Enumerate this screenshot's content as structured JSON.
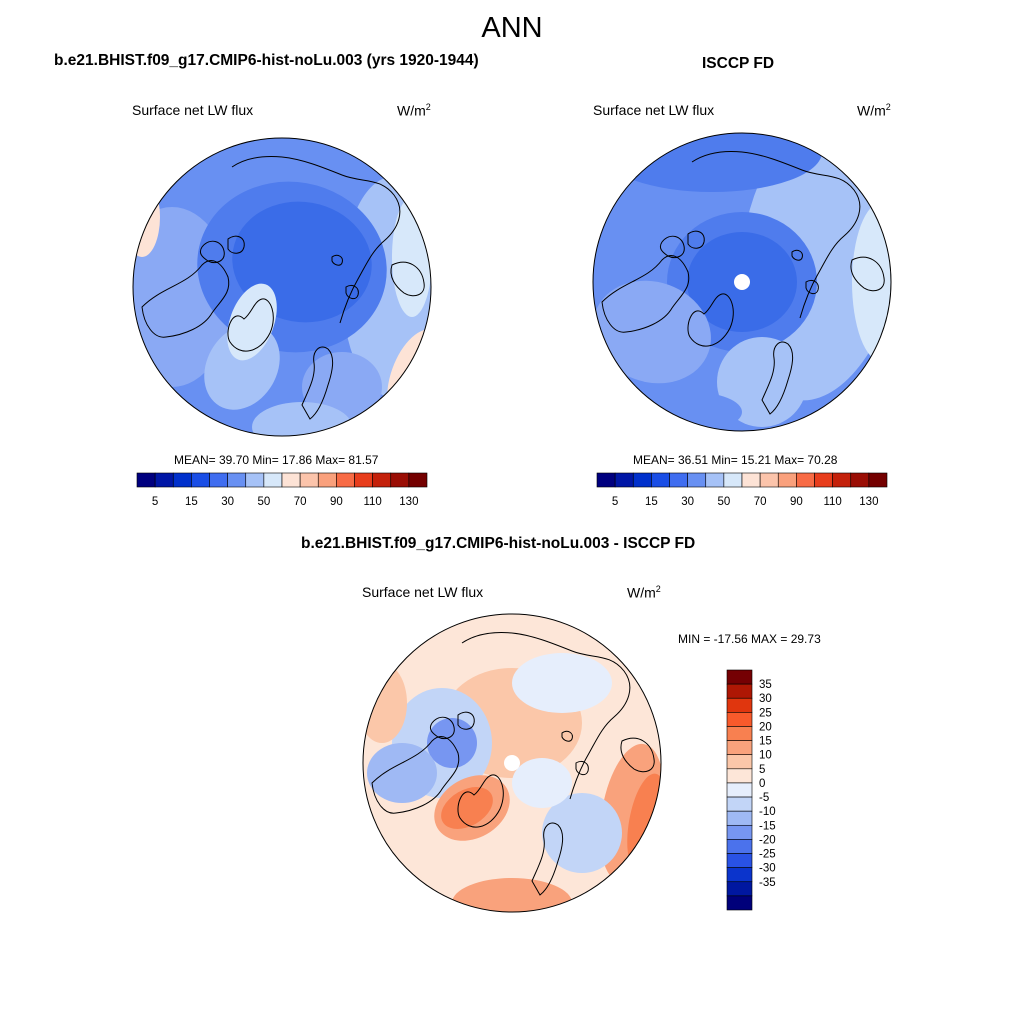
{
  "title": "ANN",
  "panels": [
    {
      "title": "b.e21.BHIST.f09_g17.CMIP6-hist-noLu.003 (yrs 1920-1944)",
      "variable": "Surface net LW flux",
      "units": "W/m",
      "units_exp": "2",
      "stats": "MEAN=  39.70  Min=  17.86  Max=  81.57",
      "missing_pole": false
    },
    {
      "title": "ISCCP FD",
      "variable": "Surface net LW flux",
      "units": "W/m",
      "units_exp": "2",
      "stats": "MEAN=  36.51  Min=  15.21  Max=  70.28",
      "missing_pole": true
    },
    {
      "title": "b.e21.BHIST.f09_g17.CMIP6-hist-noLu.003 - ISCCP FD",
      "variable": "Surface net LW flux",
      "units": "W/m",
      "units_exp": "2",
      "stats": "MIN = -17.56 MAX =  29.73",
      "missing_pole": true
    }
  ],
  "colorbar_abs": {
    "colors": [
      "#00007f",
      "#0016a6",
      "#0030cc",
      "#1a4ee6",
      "#3f6df0",
      "#6890f2",
      "#a6c2f7",
      "#d7e8fa",
      "#fde3d6",
      "#fbc4ab",
      "#f9a07c",
      "#f86b45",
      "#e83d1c",
      "#c4210b",
      "#9a0d04",
      "#740000"
    ],
    "tick_labels": [
      "5",
      "15",
      "30",
      "50",
      "70",
      "90",
      "110",
      "130"
    ]
  },
  "colorbar_diff": {
    "colors": [
      "#750003",
      "#ae1704",
      "#e0360e",
      "#f85a2b",
      "#f88050",
      "#f9a27c",
      "#fbc7a9",
      "#fde6d8",
      "#e6eefc",
      "#c2d5f7",
      "#9fb9f4",
      "#7796f1",
      "#4b72ec",
      "#2952e5",
      "#0b34cc",
      "#0017a0",
      "#00007a"
    ],
    "tick_labels": [
      "35",
      "30",
      "25",
      "20",
      "15",
      "10",
      "5",
      "0",
      "-5",
      "-10",
      "-15",
      "-20",
      "-25",
      "-30",
      "-35"
    ]
  }
}
